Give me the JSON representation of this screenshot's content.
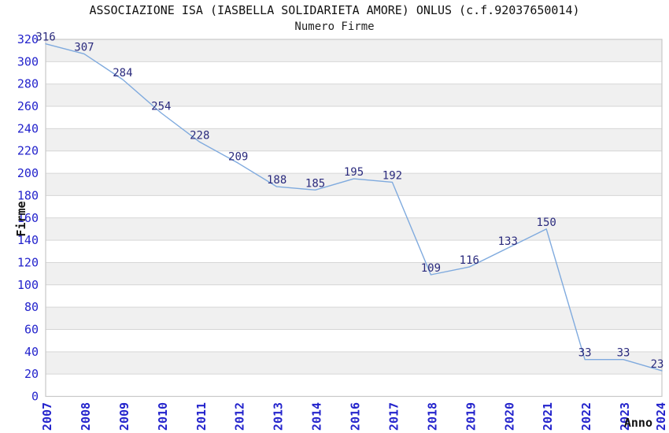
{
  "chart_data": {
    "type": "line",
    "title": "ASSOCIAZIONE ISA (IASBELLA SOLIDARIETA AMORE) ONLUS (c.f.92037650014)",
    "subtitle": "Numero Firme",
    "xlabel": "Anno",
    "ylabel": "Firme",
    "categories": [
      "2007",
      "2008",
      "2009",
      "2010",
      "2011",
      "2012",
      "2013",
      "2014",
      "2016",
      "2017",
      "2018",
      "2019",
      "2020",
      "2021",
      "2022",
      "2023",
      "2024"
    ],
    "values": [
      316,
      307,
      284,
      254,
      228,
      209,
      188,
      185,
      195,
      192,
      109,
      116,
      133,
      150,
      33,
      33,
      23
    ],
    "ylim": [
      0,
      320
    ],
    "ytick_step": 20,
    "grid": "horizontal-bands",
    "legend_position": "none",
    "colors": {
      "line": "#7faade",
      "axis_tick_label": "#2323cc",
      "data_label": "#2a2a7d",
      "band_fill": "#f0f0f0",
      "gridline": "#d6d6d6",
      "plot_border": "#c8c8c8",
      "title_text": "#111111",
      "background": "#ffffff"
    }
  }
}
